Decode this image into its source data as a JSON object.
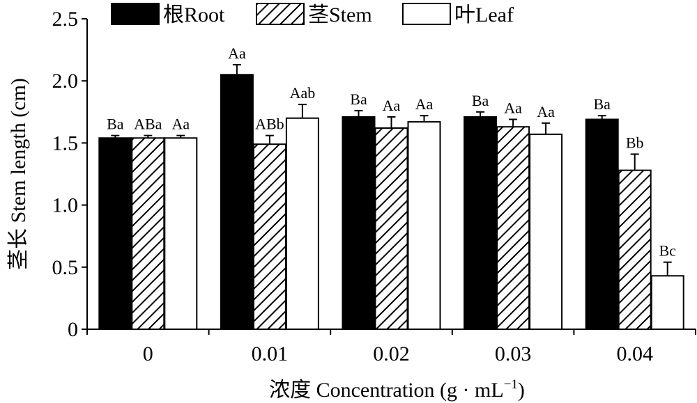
{
  "chart_data": {
    "type": "bar",
    "xlabel": "浓度 Concentration (g · mL",
    "xlabel_sup": "−1",
    "xlabel_end": ")",
    "ylabel": "茎长 Stem length (cm)",
    "ylim": [
      0,
      2.5
    ],
    "yticks": [
      "0",
      "0.5",
      "1.0",
      "1.5",
      "2.0",
      "2.5"
    ],
    "ytick_values": [
      0,
      0.5,
      1.0,
      1.5,
      2.0,
      2.5
    ],
    "categories": [
      "0",
      "0.01",
      "0.02",
      "0.03",
      "0.04"
    ],
    "legend_position": "top",
    "series": [
      {
        "name": "根Root",
        "fill": "solid-black",
        "values": [
          1.54,
          2.05,
          1.71,
          1.71,
          1.69
        ],
        "errors": [
          0.02,
          0.08,
          0.05,
          0.04,
          0.03
        ],
        "labels": [
          "Ba",
          "Aa",
          "Ba",
          "Ba",
          "Ba"
        ]
      },
      {
        "name": "茎Stem",
        "fill": "diagonal-hatch",
        "values": [
          1.54,
          1.49,
          1.62,
          1.63,
          1.28
        ],
        "errors": [
          0.02,
          0.07,
          0.09,
          0.06,
          0.13
        ],
        "labels": [
          "ABa",
          "ABb",
          "Aa",
          "Aa",
          "Bb"
        ]
      },
      {
        "name": "叶Leaf",
        "fill": "white",
        "values": [
          1.54,
          1.7,
          1.67,
          1.57,
          0.43
        ],
        "errors": [
          0.02,
          0.11,
          0.05,
          0.09,
          0.11
        ],
        "labels": [
          "Aa",
          "Aab",
          "Aa",
          "Aa",
          "Bc"
        ]
      }
    ]
  }
}
